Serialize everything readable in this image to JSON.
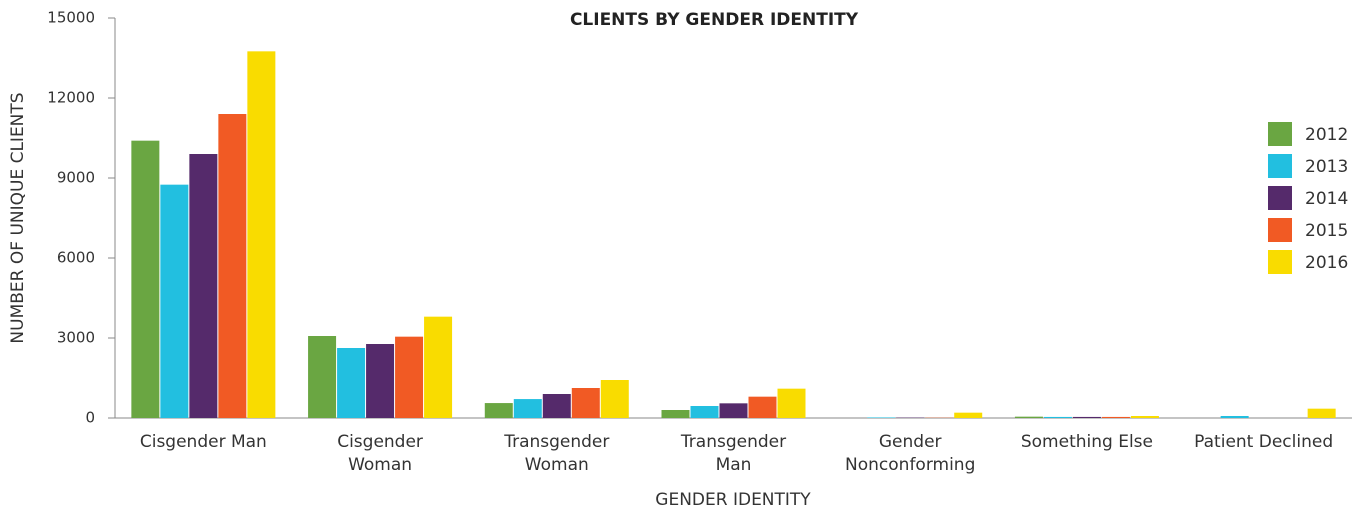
{
  "chart_data": {
    "type": "bar",
    "title": "CLIENTS BY GENDER IDENTITY",
    "x_label": "GENDER IDENTITY",
    "y_label": "NUMBER OF UNIQUE CLIENTS",
    "categories": [
      "Cisgender Man",
      "Cisgender\nWoman",
      "Transgender\nWoman",
      "Transgender\nMan",
      "Gender\nNonconforming",
      "Something Else",
      "Patient Declined"
    ],
    "series": [
      {
        "name": "2012",
        "color": "#6aa642",
        "values": [
          10400,
          3075,
          560,
          300,
          0,
          50,
          0
        ]
      },
      {
        "name": "2013",
        "color": "#22bfe0",
        "values": [
          8750,
          2625,
          710,
          450,
          20,
          40,
          75
        ]
      },
      {
        "name": "2014",
        "color": "#552a6b",
        "values": [
          9900,
          2775,
          900,
          550,
          15,
          40,
          0
        ]
      },
      {
        "name": "2015",
        "color": "#f15a24",
        "values": [
          11400,
          3050,
          1125,
          800,
          10,
          40,
          0
        ]
      },
      {
        "name": "2016",
        "color": "#f9dc00",
        "values": [
          13750,
          3800,
          1425,
          1100,
          200,
          75,
          350
        ]
      }
    ],
    "ylim": [
      0,
      15000
    ],
    "yticks": [
      0,
      3000,
      6000,
      9000,
      12000,
      15000
    ],
    "grid": false,
    "legend": "right"
  }
}
